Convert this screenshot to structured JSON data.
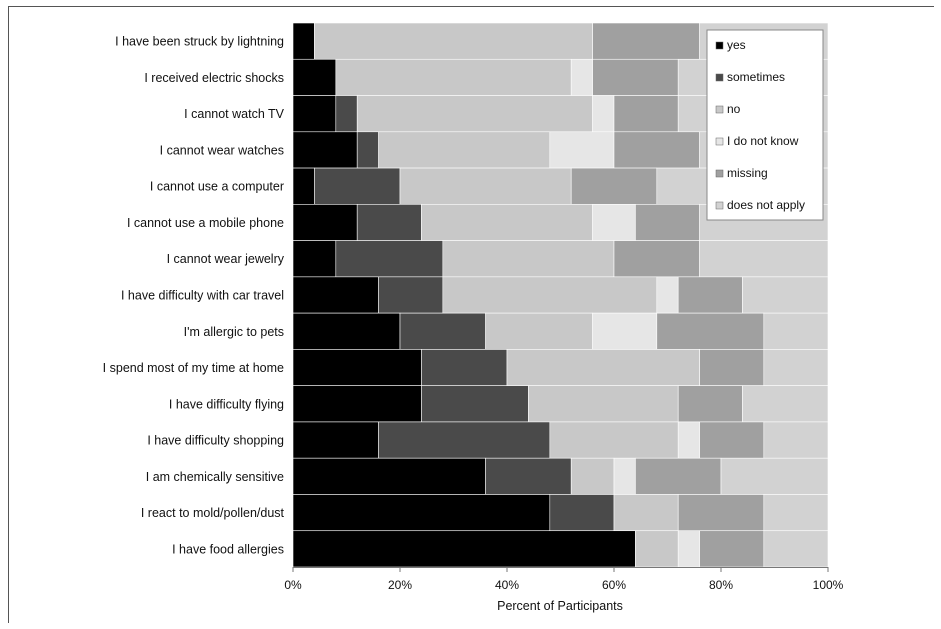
{
  "chart_data": {
    "type": "bar",
    "orientation": "horizontal",
    "stacked": true,
    "title": "",
    "xlabel": "Percent of Participants",
    "ylabel": "",
    "xlim": [
      0,
      100
    ],
    "x_ticks": [
      "0%",
      "20%",
      "40%",
      "60%",
      "80%",
      "100%"
    ],
    "legend_position": "top-right",
    "categories": [
      "I have been struck by lightning",
      "I received electric shocks",
      "I cannot watch TV",
      "I cannot wear watches",
      "I cannot use a computer",
      "I cannot use a mobile phone",
      "I cannot wear jewelry",
      "I have difficulty with car travel",
      "I'm allergic to pets",
      "I spend most of my time at home",
      "I have difficulty flying",
      "I have difficulty shopping",
      "I am chemically sensitive",
      "I react to mold/pollen/dust",
      "I have food allergies"
    ],
    "series": [
      {
        "name": "yes",
        "color": "#000000",
        "values": [
          4,
          8,
          8,
          12,
          4,
          12,
          8,
          16,
          20,
          24,
          24,
          16,
          36,
          48,
          64
        ]
      },
      {
        "name": "sometimes",
        "color": "#4a4a4a",
        "values": [
          0,
          0,
          4,
          4,
          16,
          12,
          20,
          12,
          16,
          16,
          20,
          32,
          16,
          12,
          0
        ]
      },
      {
        "name": "no",
        "color": "#c8c8c8",
        "values": [
          52,
          44,
          44,
          32,
          32,
          32,
          32,
          40,
          20,
          36,
          28,
          24,
          8,
          12,
          8
        ]
      },
      {
        "name": "I do not know",
        "color": "#e6e6e6",
        "values": [
          0,
          4,
          4,
          12,
          0,
          8,
          0,
          4,
          12,
          0,
          0,
          4,
          4,
          0,
          4
        ]
      },
      {
        "name": "missing",
        "color": "#a0a0a0",
        "values": [
          20,
          16,
          12,
          16,
          16,
          12,
          16,
          12,
          20,
          12,
          12,
          12,
          16,
          16,
          12
        ]
      },
      {
        "name": "does not apply",
        "color": "#d2d2d2",
        "values": [
          24,
          28,
          28,
          24,
          32,
          24,
          24,
          16,
          12,
          12,
          16,
          12,
          20,
          12,
          12
        ]
      }
    ]
  }
}
